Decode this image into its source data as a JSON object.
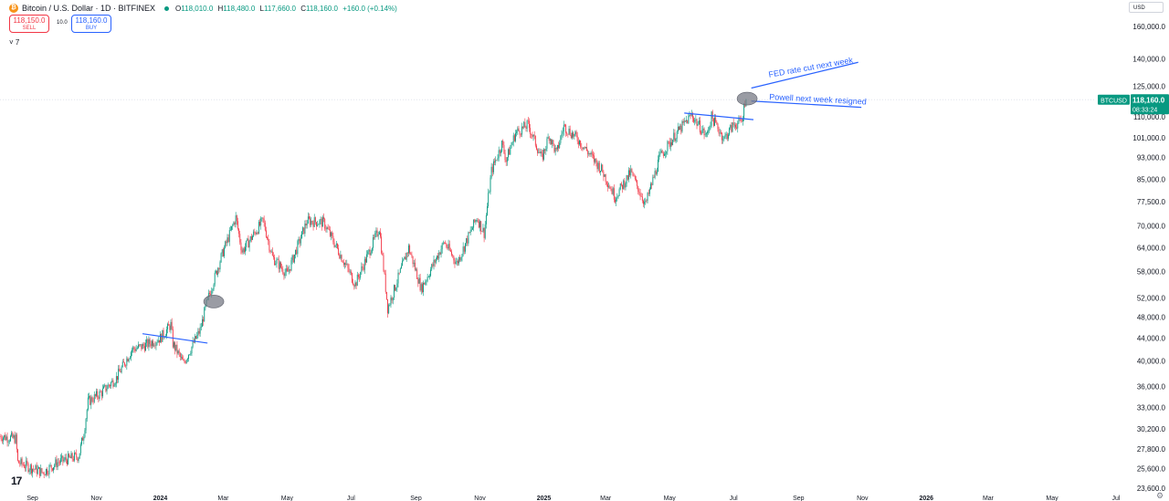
{
  "header": {
    "coin_icon": "bitcoin-coin-icon",
    "coin_glyph": "₿",
    "title": "Bitcoin / U.S. Dollar · 1D · BITFINEX",
    "status_color": "#089981",
    "ohlc": {
      "open_label": "O",
      "open": "118,010.0",
      "high_label": "H",
      "high": "118,480.0",
      "low_label": "L",
      "low": "117,660.0",
      "close_label": "C",
      "close": "118,160.0",
      "change": "+160.0 (+0.14%)"
    }
  },
  "trade": {
    "sell_price": "118,150.0",
    "sell_label": "SELL",
    "spread": "10.0",
    "buy_price": "118,160.0",
    "buy_label": "BUY"
  },
  "indicator_toggle": "˅ 7",
  "currency_selector": "USD",
  "chart_data": {
    "type": "candlestick",
    "symbol": "BTCUSD",
    "scale": "log",
    "ylim": [
      23000,
      172000
    ],
    "y_ticks": [
      160000,
      140000,
      125000,
      110000,
      101000,
      93000,
      85000,
      77500,
      70000,
      64000,
      58000,
      52000,
      48000,
      44000,
      40000,
      36000,
      33000,
      30200,
      27800,
      25600,
      23600
    ],
    "y_tick_labels": [
      "160,000.0",
      "140,000.0",
      "125,000.0",
      "110,000.0",
      "101,000.0",
      "93,000.0",
      "85,000.0",
      "77,500.0",
      "70,000.0",
      "64,000.0",
      "58,000.0",
      "52,000.0",
      "48,000.0",
      "44,000.0",
      "40,000.0",
      "36,000.0",
      "33,000.0",
      "30,200.0",
      "27,800.0",
      "25,600.0",
      "23,600.0"
    ],
    "x_start": "2023-08-01",
    "x_end": "2026-07-08",
    "x_ticks": [
      {
        "date": "2023-09-01",
        "label": "Sep"
      },
      {
        "date": "2023-11-01",
        "label": "Nov"
      },
      {
        "date": "2024-01-01",
        "label": "2024"
      },
      {
        "date": "2024-03-01",
        "label": "Mar"
      },
      {
        "date": "2024-05-01",
        "label": "May"
      },
      {
        "date": "2024-07-01",
        "label": "Jul"
      },
      {
        "date": "2024-09-01",
        "label": "Sep"
      },
      {
        "date": "2024-11-01",
        "label": "Nov"
      },
      {
        "date": "2025-01-01",
        "label": "2025"
      },
      {
        "date": "2025-03-01",
        "label": "Mar"
      },
      {
        "date": "2025-05-01",
        "label": "May"
      },
      {
        "date": "2025-07-01",
        "label": "Jul"
      },
      {
        "date": "2025-09-01",
        "label": "Sep"
      },
      {
        "date": "2025-11-01",
        "label": "Nov"
      },
      {
        "date": "2026-01-01",
        "label": "2026"
      },
      {
        "date": "2026-03-01",
        "label": "Mar"
      },
      {
        "date": "2026-05-01",
        "label": "May"
      },
      {
        "date": "2026-07-01",
        "label": "Jul"
      }
    ],
    "anchors": [
      [
        "2023-08-01",
        29300
      ],
      [
        "2023-08-16",
        29000
      ],
      [
        "2023-08-18",
        26300
      ],
      [
        "2023-09-11",
        25200
      ],
      [
        "2023-09-25",
        26300
      ],
      [
        "2023-10-15",
        27000
      ],
      [
        "2023-10-20",
        29700
      ],
      [
        "2023-10-24",
        33800
      ],
      [
        "2023-11-05",
        35000
      ],
      [
        "2023-11-20",
        37300
      ],
      [
        "2023-12-05",
        42000
      ],
      [
        "2023-12-15",
        42500
      ],
      [
        "2024-01-01",
        44000
      ],
      [
        "2024-01-11",
        46500
      ],
      [
        "2024-01-13",
        43000
      ],
      [
        "2024-01-23",
        39600
      ],
      [
        "2024-02-08",
        45500
      ],
      [
        "2024-02-15",
        51500
      ],
      [
        "2024-02-28",
        61500
      ],
      [
        "2024-03-05",
        66000
      ],
      [
        "2024-03-13",
        72500
      ],
      [
        "2024-03-19",
        63000
      ],
      [
        "2024-04-08",
        71600
      ],
      [
        "2024-04-17",
        61500
      ],
      [
        "2024-05-01",
        57300
      ],
      [
        "2024-05-20",
        71500
      ],
      [
        "2024-06-05",
        71000
      ],
      [
        "2024-06-24",
        60500
      ],
      [
        "2024-07-05",
        55000
      ],
      [
        "2024-07-28",
        69500
      ],
      [
        "2024-08-05",
        49800
      ],
      [
        "2024-08-25",
        64000
      ],
      [
        "2024-09-06",
        54000
      ],
      [
        "2024-09-28",
        65500
      ],
      [
        "2024-10-10",
        60000
      ],
      [
        "2024-10-29",
        72500
      ],
      [
        "2024-11-05",
        68000
      ],
      [
        "2024-11-12",
        88000
      ],
      [
        "2024-11-22",
        98500
      ],
      [
        "2024-11-26",
        92000
      ],
      [
        "2024-12-05",
        103000
      ],
      [
        "2024-12-17",
        106500
      ],
      [
        "2024-12-30",
        92500
      ],
      [
        "2025-01-06",
        102000
      ],
      [
        "2025-01-13",
        94500
      ],
      [
        "2025-01-20",
        106000
      ],
      [
        "2025-02-03",
        100000
      ],
      [
        "2025-02-25",
        88500
      ],
      [
        "2025-03-10",
        79000
      ],
      [
        "2025-03-25",
        87500
      ],
      [
        "2025-04-08",
        76500
      ],
      [
        "2025-04-22",
        93500
      ],
      [
        "2025-05-08",
        103000
      ],
      [
        "2025-05-22",
        111000
      ],
      [
        "2025-06-05",
        101500
      ],
      [
        "2025-06-10",
        110000
      ],
      [
        "2025-06-22",
        100500
      ],
      [
        "2025-07-01",
        106500
      ],
      [
        "2025-07-09",
        108000
      ],
      [
        "2025-07-12",
        117500
      ],
      [
        "2025-07-13",
        118160
      ]
    ],
    "last_date": "2025-07-13",
    "last_price": {
      "symbol": "BTCUSD",
      "value": 118160,
      "label": "118,160.0",
      "countdown": "08:33:24"
    },
    "colors": {
      "up": "#089981",
      "down": "#f23645",
      "trendline": "#2962ff",
      "marker": "#787b86",
      "grid": "#e0e3eb"
    },
    "trendlines": [
      {
        "from": [
          "2023-12-15",
          44800
        ],
        "to": [
          "2024-02-15",
          43100
        ]
      },
      {
        "from": [
          "2025-05-15",
          111800
        ],
        "to": [
          "2025-07-20",
          108800
        ]
      },
      {
        "from": [
          "2025-07-18",
          124000
        ],
        "to": [
          "2025-10-28",
          138000
        ]
      },
      {
        "from": [
          "2025-07-18",
          117500
        ],
        "to": [
          "2025-10-31",
          114500
        ]
      }
    ],
    "markers": [
      {
        "date": "2024-02-21",
        "value": 51200
      },
      {
        "date": "2025-07-14",
        "value": 118700
      }
    ],
    "annotations": [
      {
        "text": "FED rate cut next week",
        "date": "2025-08-04",
        "value": 129600,
        "rotate": -10
      },
      {
        "text": "Powell next week resigned",
        "date": "2025-08-04",
        "value": 118300,
        "rotate": 3
      }
    ]
  }
}
